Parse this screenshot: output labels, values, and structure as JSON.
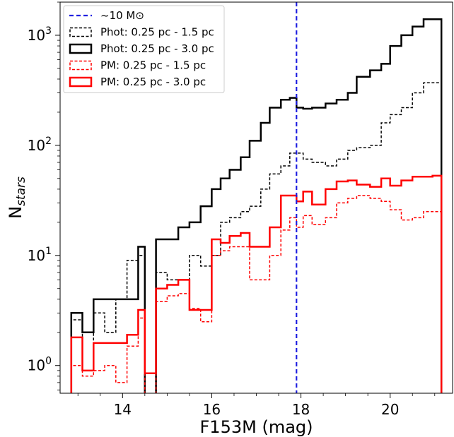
{
  "chart_data": {
    "type": "histogram",
    "title": "",
    "xlabel": "F153M (mag)",
    "ylabel_main": "N",
    "ylabel_sub": "stars",
    "yscale": "log",
    "xlim": [
      12.6,
      21.4
    ],
    "ylim": [
      0.56,
      2000
    ],
    "x_ticks": [
      14,
      16,
      18,
      20
    ],
    "x_tick_labels": [
      "14",
      "16",
      "18",
      "20"
    ],
    "y_ticks": [
      1,
      10,
      100,
      1000
    ],
    "y_tick_labels": [
      {
        "base": "10",
        "exp": "0"
      },
      {
        "base": "10",
        "exp": "1"
      },
      {
        "base": "10",
        "exp": "2"
      },
      {
        "base": "10",
        "exp": "3"
      }
    ],
    "bin_edges": [
      12.85,
      13.1,
      13.35,
      13.6,
      13.85,
      14.1,
      14.35,
      14.5,
      14.75,
      15.0,
      15.25,
      15.5,
      15.75,
      16.0,
      16.2,
      16.4,
      16.65,
      16.85,
      17.1,
      17.3,
      17.55,
      17.75,
      17.9,
      18.05,
      18.25,
      18.55,
      18.8,
      19.05,
      19.25,
      19.55,
      19.8,
      20.0,
      20.25,
      20.5,
      20.75,
      20.95,
      21.15
    ],
    "vline": {
      "x": 17.9,
      "label": "~10 M⊙",
      "color": "#1f1fe0"
    },
    "series": [
      {
        "name": "Phot: 0.25 pc - 1.5 pc",
        "color": "#000000",
        "style": "dashed",
        "width": 1.5,
        "values": [
          2.6,
          0.9,
          3,
          2,
          4,
          9,
          10,
          0.5,
          7,
          6,
          6,
          10,
          8,
          10,
          20,
          22,
          25,
          28,
          40,
          55,
          65,
          85,
          85,
          75,
          70,
          65,
          75,
          90,
          95,
          100,
          160,
          190,
          220,
          300,
          370,
          370
        ]
      },
      {
        "name": "Phot: 0.25 pc - 3.0 pc",
        "color": "#000000",
        "style": "solid",
        "width": 2.5,
        "values": [
          3,
          2,
          4,
          4,
          4,
          4,
          12,
          0.5,
          14,
          14,
          18,
          20,
          28,
          40,
          50,
          60,
          78,
          110,
          160,
          220,
          260,
          270,
          220,
          215,
          220,
          240,
          260,
          300,
          420,
          480,
          550,
          800,
          1000,
          1200,
          1400,
          1400
        ]
      },
      {
        "name": "PM: 0.25 pc - 1.5 pc",
        "color": "#ff0000",
        "style": "dashed",
        "width": 1.5,
        "values": [
          1,
          0.8,
          0.9,
          1,
          0.7,
          1.5,
          2.7,
          0.5,
          3.8,
          4.3,
          4.5,
          3.3,
          2.5,
          10,
          11,
          12,
          12,
          6,
          6,
          10,
          17,
          22,
          18,
          23,
          19,
          22,
          30,
          33,
          35,
          33,
          31,
          26,
          21,
          22,
          25,
          25
        ]
      },
      {
        "name": "PM: 0.25 pc - 3.0 pc",
        "color": "#ff0000",
        "style": "solid",
        "width": 2.5,
        "values": [
          1.8,
          0.9,
          1.6,
          1.6,
          1.6,
          1.9,
          3.2,
          0.85,
          5,
          5.4,
          6,
          3.2,
          3.2,
          14,
          13,
          15,
          16,
          12,
          12,
          18,
          35,
          35,
          31,
          38,
          29,
          40,
          47,
          48,
          44,
          42,
          50,
          43,
          48,
          52,
          52,
          53
        ]
      }
    ],
    "legend_position": "top-left",
    "grid": false
  }
}
